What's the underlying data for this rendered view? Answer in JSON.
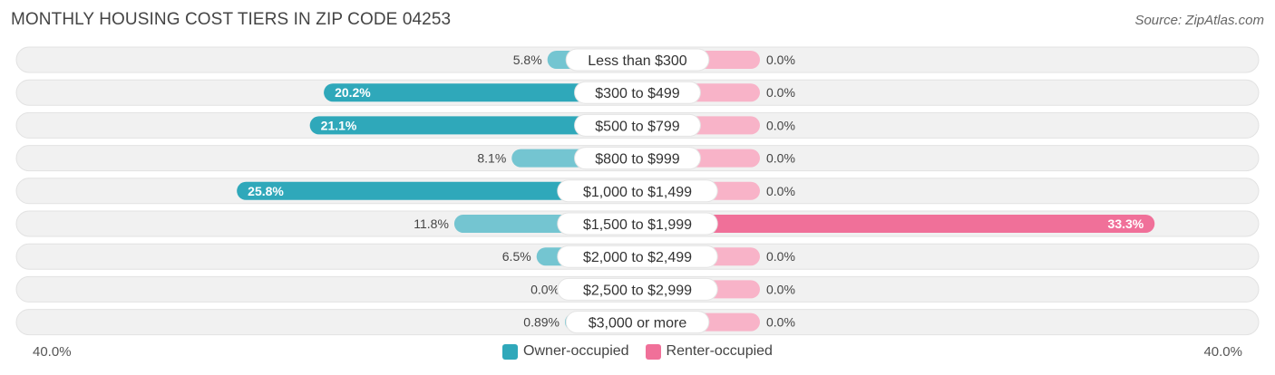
{
  "title": "MONTHLY HOUSING COST TIERS IN ZIP CODE 04253",
  "source": "Source: ZipAtlas.com",
  "colors": {
    "owner": "#2fa8ba",
    "owner_light": "#74c5d1",
    "renter": "#f07099",
    "renter_light": "#f8b3c8",
    "track": "#f1f1f1"
  },
  "chart_data": {
    "type": "bar",
    "orientation": "horizontal-diverging",
    "categories": [
      "Less than $300",
      "$300 to $499",
      "$500 to $799",
      "$800 to $999",
      "$1,000 to $1,499",
      "$1,500 to $1,999",
      "$2,000 to $2,499",
      "$2,500 to $2,999",
      "$3,000 or more"
    ],
    "series": [
      {
        "name": "Owner-occupied",
        "values": [
          5.8,
          20.2,
          21.1,
          8.1,
          25.8,
          11.8,
          6.5,
          0.0,
          0.89
        ],
        "labels": [
          "5.8%",
          "20.2%",
          "21.1%",
          "8.1%",
          "25.8%",
          "11.8%",
          "6.5%",
          "0.0%",
          "0.89%"
        ]
      },
      {
        "name": "Renter-occupied",
        "values": [
          0.0,
          0.0,
          0.0,
          0.0,
          0.0,
          33.3,
          0.0,
          0.0,
          0.0
        ],
        "labels": [
          "0.0%",
          "0.0%",
          "0.0%",
          "0.0%",
          "0.0%",
          "33.3%",
          "0.0%",
          "0.0%",
          "0.0%"
        ]
      }
    ],
    "axis_min_label": "40.0%",
    "axis_max_label": "40.0%",
    "xlim": [
      -40,
      40
    ],
    "legend": "bottom-center"
  }
}
